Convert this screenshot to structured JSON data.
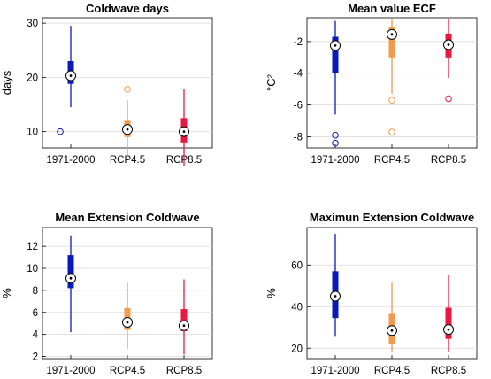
{
  "chart_data": [
    {
      "type": "boxplot",
      "title": "Coldwave days",
      "ylabel": "days",
      "ylim": [
        7,
        31
      ],
      "yticks": [
        10,
        20,
        30
      ],
      "yticklabels": [
        "10",
        "20",
        "30"
      ],
      "grid": true,
      "categories": [
        "1971-2000",
        "RCP4.5",
        "RCP8.5"
      ],
      "colors": [
        "#0a1aba",
        "#f39a4c",
        "#e8183f"
      ],
      "boxes": [
        {
          "whisker_low": 14.5,
          "q1": 18.8,
          "median": 20.3,
          "q3": 23.0,
          "whisker_high": 29.5,
          "outliers": [
            10.0
          ]
        },
        {
          "whisker_low": 5.3,
          "q1": 9.0,
          "median": 10.4,
          "q3": 12.0,
          "whisker_high": 15.8,
          "outliers": [
            17.8
          ]
        },
        {
          "whisker_low": 3.7,
          "q1": 8.0,
          "median": 10.0,
          "q3": 12.5,
          "whisker_high": 17.9,
          "outliers": []
        }
      ]
    },
    {
      "type": "boxplot",
      "title": "Mean value ECF",
      "ylabel": "°C²",
      "ylim": [
        -8.7,
        -0.5
      ],
      "yticks": [
        -8,
        -6,
        -4,
        -2
      ],
      "yticklabels": [
        "-8",
        "-6",
        "-4",
        "-2"
      ],
      "grid": true,
      "categories": [
        "1971-2000",
        "RCP4.5",
        "RCP8.5"
      ],
      "colors": [
        "#0a1aba",
        "#f39a4c",
        "#e8183f"
      ],
      "boxes": [
        {
          "whisker_low": -6.6,
          "q1": -4.0,
          "median": -2.25,
          "q3": -1.7,
          "whisker_high": -0.7,
          "outliers": [
            -7.9,
            -8.4
          ]
        },
        {
          "whisker_low": -5.3,
          "q1": -3.0,
          "median": -1.55,
          "q3": -1.1,
          "whisker_high": -0.6,
          "outliers": [
            -5.7,
            -7.7
          ]
        },
        {
          "whisker_low": -4.3,
          "q1": -3.0,
          "median": -2.2,
          "q3": -1.5,
          "whisker_high": -0.6,
          "outliers": [
            -5.6
          ]
        }
      ]
    },
    {
      "type": "boxplot",
      "title": "Mean Extension Coldwave",
      "ylabel": "%",
      "ylim": [
        1.8,
        13.7
      ],
      "yticks": [
        2,
        4,
        6,
        8,
        10,
        12
      ],
      "yticklabels": [
        "2",
        "4",
        "6",
        "8",
        "10",
        "12"
      ],
      "grid": true,
      "categories": [
        "1971-2000",
        "RCP4.5",
        "RCP8.5"
      ],
      "colors": [
        "#0a1aba",
        "#f39a4c",
        "#e8183f"
      ],
      "boxes": [
        {
          "whisker_low": 4.2,
          "q1": 8.2,
          "median": 9.1,
          "q3": 11.2,
          "whisker_high": 13.0,
          "outliers": []
        },
        {
          "whisker_low": 2.7,
          "q1": 4.4,
          "median": 5.1,
          "q3": 6.4,
          "whisker_high": 8.8,
          "outliers": []
        },
        {
          "whisker_low": 2.2,
          "q1": 4.3,
          "median": 4.8,
          "q3": 6.3,
          "whisker_high": 9.0,
          "outliers": []
        }
      ]
    },
    {
      "type": "boxplot",
      "title": "Maximun Extension Coldwave",
      "ylabel": "%",
      "ylim": [
        15,
        78
      ],
      "yticks": [
        20,
        40,
        60
      ],
      "yticklabels": [
        "20",
        "40",
        "60"
      ],
      "grid": true,
      "categories": [
        "1971-2000",
        "RCP4.5",
        "RCP8.5"
      ],
      "colors": [
        "#0a1aba",
        "#f39a4c",
        "#e8183f"
      ],
      "boxes": [
        {
          "whisker_low": 25.5,
          "q1": 34.5,
          "median": 45.0,
          "q3": 57.0,
          "whisker_high": 75.0,
          "outliers": []
        },
        {
          "whisker_low": 17.8,
          "q1": 22.0,
          "median": 28.5,
          "q3": 36.5,
          "whisker_high": 51.5,
          "outliers": []
        },
        {
          "whisker_low": 18.5,
          "q1": 24.5,
          "median": 29.0,
          "q3": 39.5,
          "whisker_high": 55.5,
          "outliers": []
        }
      ]
    }
  ]
}
